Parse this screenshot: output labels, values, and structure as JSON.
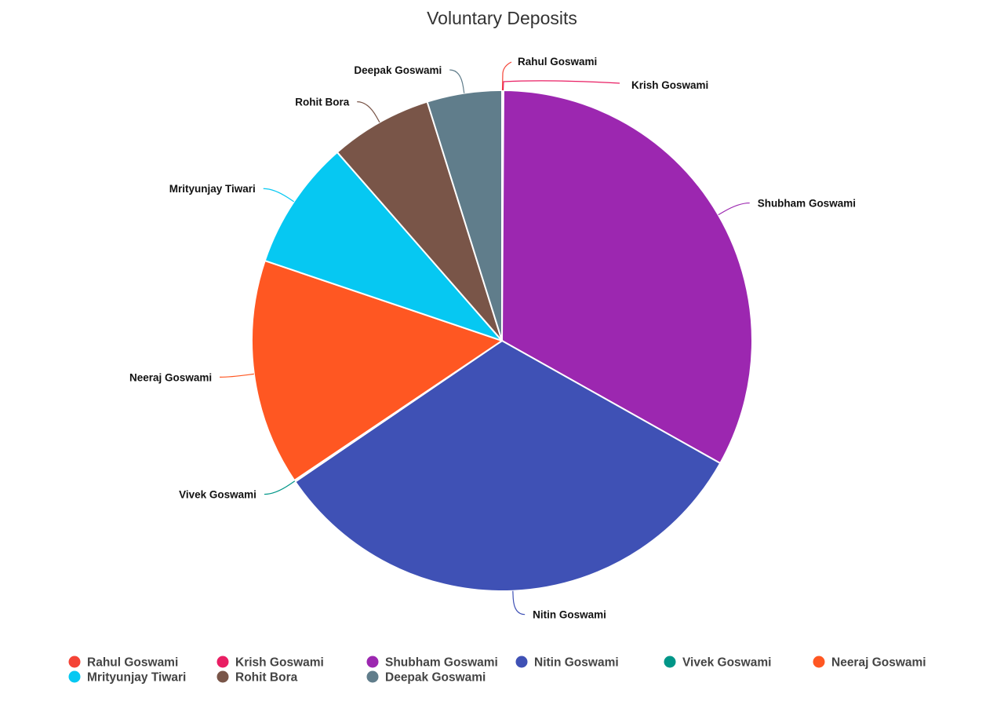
{
  "chart_data": {
    "type": "pie",
    "title": "Voluntary Deposits",
    "legend_position": "bottom",
    "slices": [
      {
        "name": "Rahul Goswami",
        "value": 0.05,
        "color": "#f44336"
      },
      {
        "name": "Krish Goswami",
        "value": 0.05,
        "color": "#e91e63"
      },
      {
        "name": "Shubham Goswami",
        "value": 33.5,
        "color": "#9c27b0"
      },
      {
        "name": "Nitin Goswami",
        "value": 32.8,
        "color": "#3f51b5"
      },
      {
        "name": "Vivek Goswami",
        "value": 0.1,
        "color": "#009688"
      },
      {
        "name": "Neeraj Goswami",
        "value": 14.8,
        "color": "#ff5722"
      },
      {
        "name": "Mrityunjay Tiwari",
        "value": 8.5,
        "color": "#06c8f2"
      },
      {
        "name": "Rohit Bora",
        "value": 6.7,
        "color": "#795548"
      },
      {
        "name": "Deepak Goswami",
        "value": 4.9,
        "color": "#607d8b"
      }
    ]
  }
}
